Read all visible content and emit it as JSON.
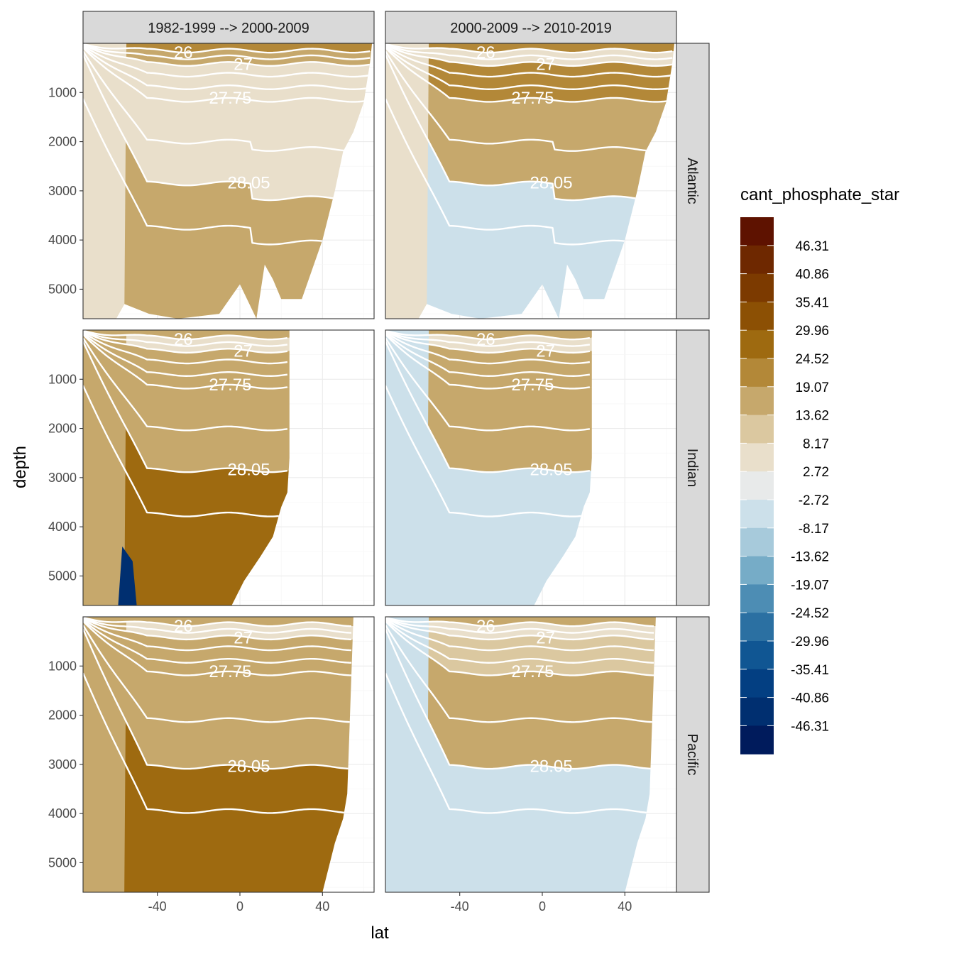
{
  "chart_data": {
    "type": "heatmap",
    "xlabel": "lat",
    "ylabel": "depth",
    "xlim": [
      -76,
      65
    ],
    "ylim": [
      5600,
      0
    ],
    "x_ticks": [
      -40,
      0,
      40
    ],
    "y_ticks": [
      1000,
      2000,
      3000,
      4000,
      5000
    ],
    "grid": true,
    "legend_position": "right",
    "legend": {
      "title": "cant_phosphate_star",
      "labels": [
        "46.31",
        "40.86",
        "35.41",
        "29.96",
        "24.52",
        "19.07",
        "13.62",
        "8.17",
        "2.72",
        "-2.72",
        "-8.17",
        "-13.62",
        "-19.07",
        "-24.52",
        "-29.96",
        "-35.41",
        "-40.86",
        "-46.31"
      ],
      "colors": [
        "#5e1200",
        "#6e2800",
        "#7c3a00",
        "#8c5004",
        "#9e6a10",
        "#b38838",
        "#c6a86c",
        "#dbc8a0",
        "#e9dfcb",
        "#e8eaea",
        "#cce0ea",
        "#a7cadb",
        "#76acc7",
        "#4d8db4",
        "#2b70a2",
        "#105693",
        "#033f82",
        "#002f70",
        "#001b5c"
      ]
    },
    "facet_columns": [
      "1982-1999 --> 2000-2009",
      "2000-2009 --> 2010-2019"
    ],
    "facet_rows": [
      "Atlantic",
      "Indian",
      "Pacific"
    ],
    "isopycnal_labels": [
      "26",
      "27",
      "27.75",
      "28.05"
    ],
    "dominant_band_by_panel": [
      {
        "basin": "Atlantic",
        "period": "1982-1999 --> 2000-2009",
        "surface": 13.62,
        "intermediate": 8.17,
        "deep": 13.62
      },
      {
        "basin": "Atlantic",
        "period": "2000-2009 --> 2010-2019",
        "surface": 8.17,
        "intermediate": 24.52,
        "deep": -8.17
      },
      {
        "basin": "Indian",
        "period": "1982-1999 --> 2000-2009",
        "surface": 8.17,
        "intermediate": 13.62,
        "deep": 29.96
      },
      {
        "basin": "Indian",
        "period": "2000-2009 --> 2010-2019",
        "surface": 8.17,
        "intermediate": 13.62,
        "deep": -2.72
      },
      {
        "basin": "Pacific",
        "period": "1982-1999 --> 2000-2009",
        "surface": 8.17,
        "intermediate": 13.62,
        "deep": 29.96
      },
      {
        "basin": "Pacific",
        "period": "2000-2009 --> 2010-2019",
        "surface": 8.17,
        "intermediate": 13.62,
        "deep": -2.72
      }
    ]
  }
}
